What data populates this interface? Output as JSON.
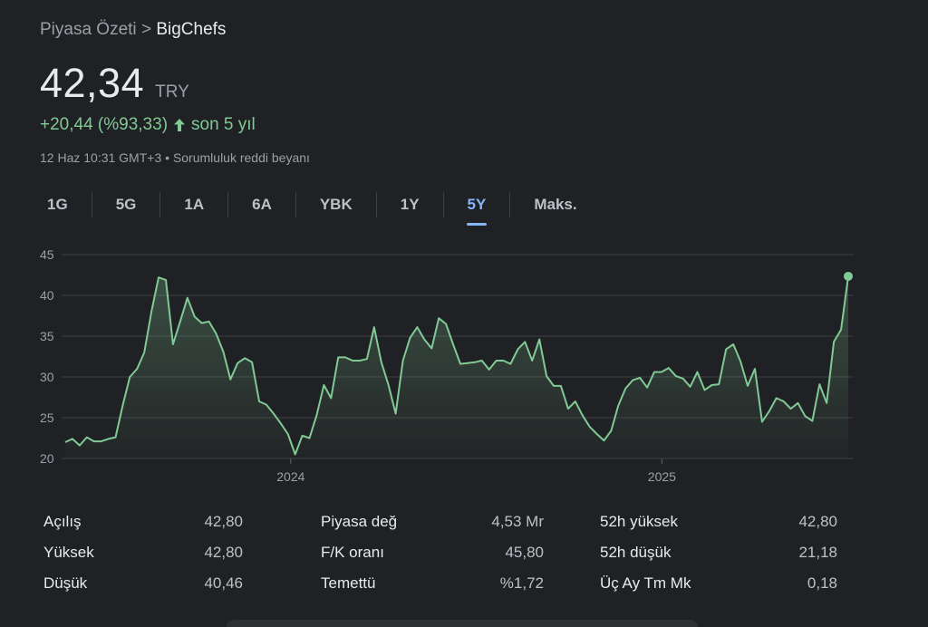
{
  "breadcrumb": {
    "parent": "Piyasa Özeti",
    "separator": ">",
    "current": "BigChefs"
  },
  "quote": {
    "price": "42,34",
    "currency": "TRY",
    "change": "+20,44 (%93,33)",
    "period": "son 5 yıl",
    "trend_icon": "arrow-up-icon",
    "timestamp": "12 Haz 10:31 GMT+3",
    "bullet": "•",
    "disclaimer": "Sorumluluk reddi beyanı"
  },
  "tabs": [
    {
      "label": "1G",
      "active": false
    },
    {
      "label": "5G",
      "active": false
    },
    {
      "label": "1A",
      "active": false
    },
    {
      "label": "6A",
      "active": false
    },
    {
      "label": "YBK",
      "active": false
    },
    {
      "label": "1Y",
      "active": false
    },
    {
      "label": "5Y",
      "active": true
    },
    {
      "label": "Maks.",
      "active": false
    }
  ],
  "colors": {
    "positive": "#81c995",
    "active_tab": "#8ab4f8",
    "background": "#202124"
  },
  "chart_data": {
    "type": "area",
    "ylim": [
      20,
      45
    ],
    "yticks": [
      20,
      25,
      30,
      35,
      40,
      45
    ],
    "xticks": [
      {
        "label": "2024",
        "t": 0.288
      },
      {
        "label": "2025",
        "t": 0.762
      }
    ],
    "grid": true,
    "last_point_marker": true,
    "values": [
      22.0,
      22.4,
      21.6,
      22.6,
      22.1,
      22.1,
      22.4,
      22.6,
      26.5,
      30.0,
      31.0,
      33.0,
      38.0,
      42.2,
      41.9,
      34.0,
      36.8,
      39.7,
      37.4,
      36.6,
      36.8,
      35.3,
      33.1,
      29.7,
      31.7,
      32.3,
      31.8,
      27.0,
      26.6,
      25.5,
      24.3,
      23.0,
      20.5,
      22.8,
      22.5,
      25.3,
      29.0,
      27.4,
      32.4,
      32.4,
      32.0,
      32.0,
      32.2,
      36.1,
      31.8,
      29.0,
      25.5,
      32.0,
      34.8,
      36.1,
      34.6,
      33.5,
      37.2,
      36.5,
      34.0,
      31.6,
      31.7,
      31.8,
      32.0,
      30.9,
      32.0,
      32.0,
      31.6,
      33.4,
      34.3,
      32.0,
      34.6,
      30.1,
      28.9,
      28.9,
      26.1,
      27.0,
      25.3,
      23.9,
      23.0,
      22.2,
      23.4,
      26.5,
      28.6,
      29.6,
      29.9,
      28.7,
      30.6,
      30.6,
      31.1,
      30.1,
      29.8,
      28.8,
      30.6,
      28.4,
      29.0,
      29.1,
      33.4,
      34.0,
      31.9,
      28.9,
      31.0,
      24.5,
      25.8,
      27.4,
      27.0,
      26.1,
      26.8,
      25.2,
      24.6,
      29.1,
      26.8,
      34.3,
      35.8,
      42.34
    ]
  },
  "stats": [
    [
      {
        "label": "Açılış",
        "value": "42,80"
      },
      {
        "label": "Yüksek",
        "value": "42,80"
      },
      {
        "label": "Düşük",
        "value": "40,46"
      }
    ],
    [
      {
        "label": "Piyasa değ",
        "value": "4,53 Mr"
      },
      {
        "label": "F/K oranı",
        "value": "45,80"
      },
      {
        "label": "Temettü",
        "value": "%1,72"
      }
    ],
    [
      {
        "label": "52h yüksek",
        "value": "42,80"
      },
      {
        "label": "52h düşük",
        "value": "21,18"
      },
      {
        "label": "Üç Ay Tm Mk",
        "value": "0,18"
      }
    ]
  ]
}
